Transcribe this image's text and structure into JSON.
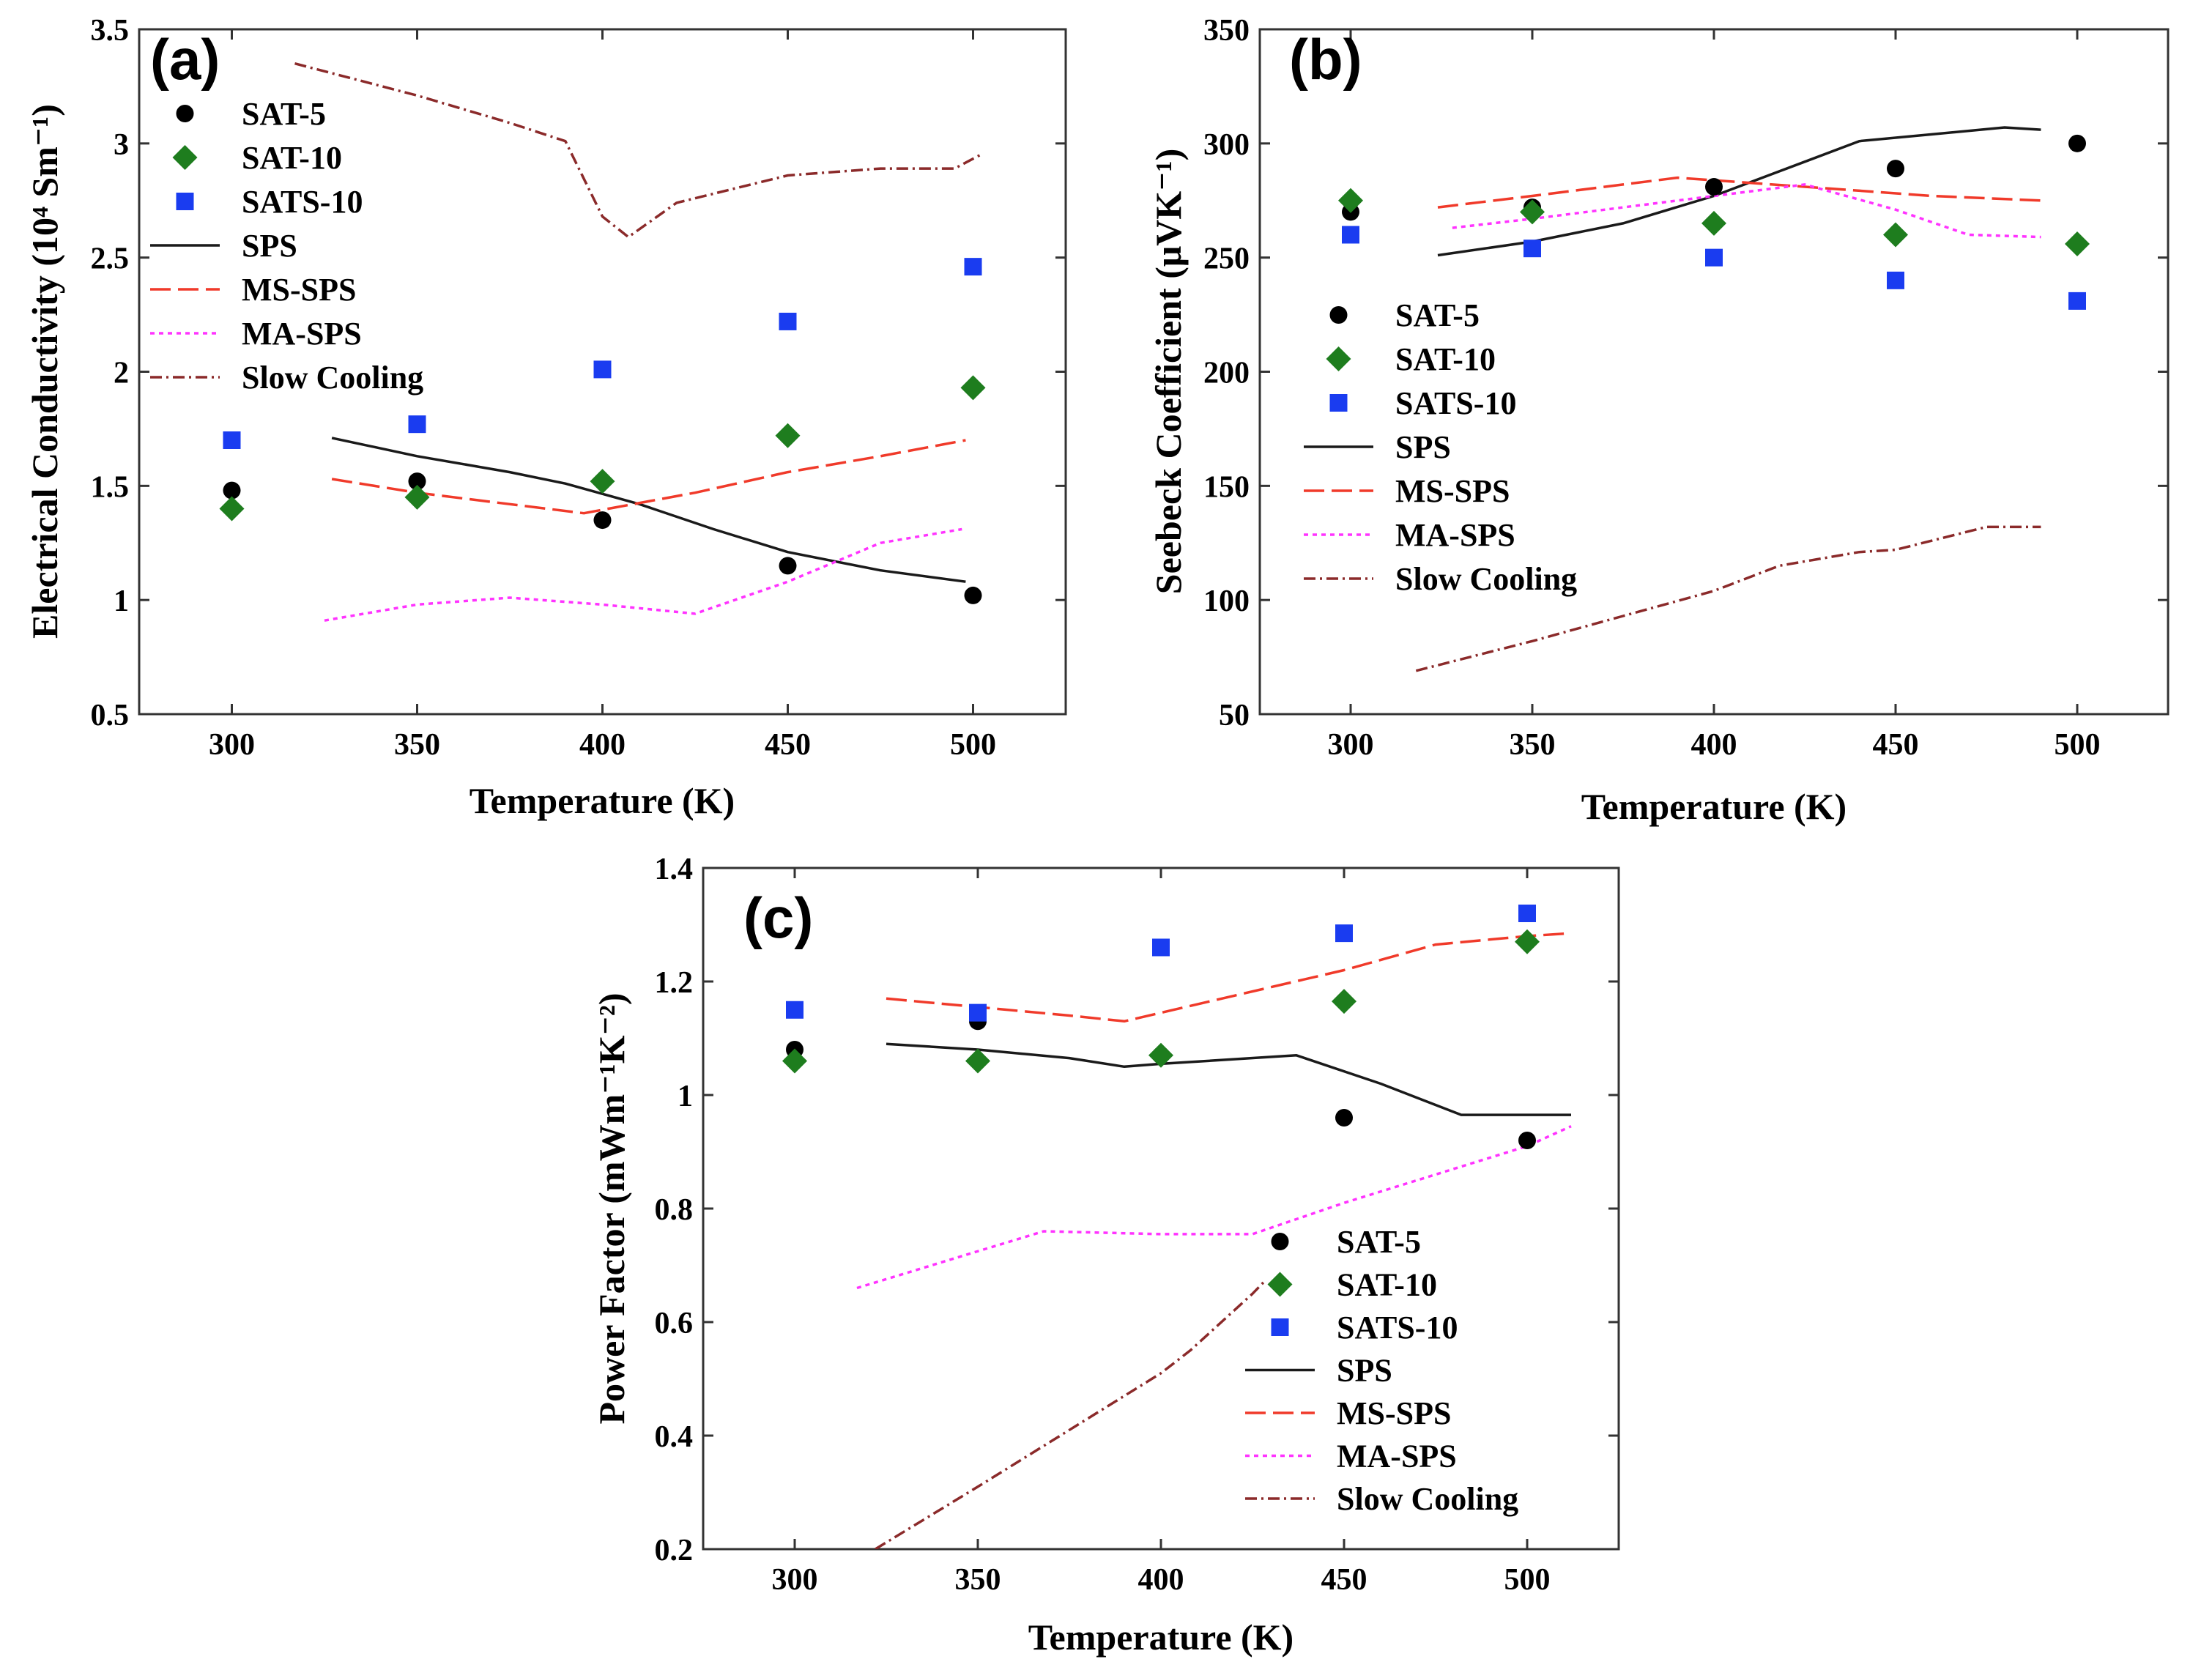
{
  "styles": {
    "SAT-5": {
      "marker": "circle",
      "color": "#000000"
    },
    "SAT-10": {
      "marker": "diamond",
      "color": "#1e7d1e"
    },
    "SATS-10": {
      "marker": "square",
      "color": "#1a3cf0"
    },
    "SPS": {
      "dash": "none",
      "color": "#1a1a1a"
    },
    "MS-SPS": {
      "dash": "28,10",
      "color": "#f03a2a"
    },
    "MA-SPS": {
      "dash": "6,6",
      "color": "#ff33ff"
    },
    "Slow Cooling": {
      "dash": "16,6,3,6",
      "color": "#8b2a2a"
    }
  },
  "legend_order": [
    "SAT-5",
    "SAT-10",
    "SATS-10",
    "SPS",
    "MS-SPS",
    "MA-SPS",
    "Slow Cooling"
  ],
  "chart_data": [
    {
      "id": "a",
      "panel_label": "(a)",
      "type": "scatter+line",
      "xlabel": "Temperature (K)",
      "ylabel": "Electrical Conductivity (10⁴ Sm⁻¹)",
      "xlim": [
        275,
        525
      ],
      "ylim": [
        0.5,
        3.5
      ],
      "xticks": [
        "300",
        "350",
        "400",
        "450",
        "500"
      ],
      "yticks": [
        "0.5",
        "1",
        "1.5",
        "2",
        "2.5",
        "3",
        "3.5"
      ],
      "legend_position": "top-left",
      "scatter": [
        {
          "name": "SAT-5",
          "x": [
            300,
            350,
            400,
            450,
            500
          ],
          "y": [
            1.48,
            1.52,
            1.35,
            1.15,
            1.02
          ]
        },
        {
          "name": "SAT-10",
          "x": [
            300,
            350,
            400,
            450,
            500
          ],
          "y": [
            1.4,
            1.45,
            1.52,
            1.72,
            1.93
          ]
        },
        {
          "name": "SATS-10",
          "x": [
            300,
            350,
            400,
            450,
            500
          ],
          "y": [
            1.7,
            1.77,
            2.01,
            2.22,
            2.46
          ]
        }
      ],
      "lines": [
        {
          "name": "SPS",
          "x": [
            327,
            350,
            375,
            390,
            410,
            430,
            450,
            475,
            498
          ],
          "y": [
            1.71,
            1.63,
            1.56,
            1.51,
            1.42,
            1.31,
            1.21,
            1.13,
            1.08
          ]
        },
        {
          "name": "MS-SPS",
          "x": [
            327,
            350,
            375,
            395,
            425,
            450,
            475,
            498
          ],
          "y": [
            1.53,
            1.47,
            1.42,
            1.38,
            1.47,
            1.56,
            1.63,
            1.7
          ]
        },
        {
          "name": "MA-SPS",
          "x": [
            325,
            350,
            375,
            400,
            425,
            450,
            475,
            497
          ],
          "y": [
            0.91,
            0.98,
            1.01,
            0.98,
            0.94,
            1.08,
            1.25,
            1.31
          ]
        },
        {
          "name": "Slow Cooling",
          "x": [
            317,
            350,
            375,
            390,
            400,
            407,
            420,
            450,
            475,
            495,
            502
          ],
          "y": [
            3.35,
            3.21,
            3.09,
            3.01,
            2.68,
            2.59,
            2.74,
            2.86,
            2.89,
            2.89,
            2.95
          ]
        }
      ]
    },
    {
      "id": "b",
      "panel_label": "(b)",
      "type": "scatter+line",
      "xlabel": "Temperature (K)",
      "ylabel": "Seebeck Coefficient (μVK⁻¹)",
      "xlim": [
        275,
        525
      ],
      "ylim": [
        50,
        350
      ],
      "xticks": [
        "300",
        "350",
        "400",
        "450",
        "500"
      ],
      "yticks": [
        "50",
        "100",
        "150",
        "200",
        "250",
        "300",
        "350"
      ],
      "legend_position": "left-center",
      "scatter": [
        {
          "name": "SAT-5",
          "x": [
            300,
            350,
            400,
            450,
            500
          ],
          "y": [
            270,
            272,
            281,
            289,
            300
          ]
        },
        {
          "name": "SAT-10",
          "x": [
            300,
            350,
            400,
            450,
            500
          ],
          "y": [
            275,
            270,
            265,
            260,
            256
          ]
        },
        {
          "name": "SATS-10",
          "x": [
            300,
            350,
            400,
            450,
            500
          ],
          "y": [
            260,
            254,
            250,
            240,
            231
          ]
        }
      ],
      "lines": [
        {
          "name": "SPS",
          "x": [
            324,
            350,
            375,
            400,
            425,
            440,
            460,
            480,
            490
          ],
          "y": [
            251,
            257,
            265,
            277,
            292,
            301,
            304,
            307,
            306
          ]
        },
        {
          "name": "MS-SPS",
          "x": [
            324,
            350,
            375,
            390,
            425,
            460,
            490
          ],
          "y": [
            272,
            277,
            282,
            285,
            281,
            277,
            275
          ]
        },
        {
          "name": "MA-SPS",
          "x": [
            328,
            350,
            375,
            400,
            425,
            450,
            470,
            490
          ],
          "y": [
            263,
            267,
            272,
            277,
            282,
            271,
            260,
            259
          ]
        },
        {
          "name": "Slow Cooling",
          "x": [
            318,
            350,
            375,
            400,
            418,
            440,
            450,
            475,
            490
          ],
          "y": [
            69,
            82,
            93,
            104,
            115,
            121,
            122,
            132,
            132
          ]
        }
      ]
    },
    {
      "id": "c",
      "panel_label": "(c)",
      "type": "scatter+line",
      "xlabel": "Temperature (K)",
      "ylabel": "Power Factor (mWm⁻¹K⁻²)",
      "xlim": [
        275,
        525
      ],
      "ylim": [
        0.2,
        1.4
      ],
      "xticks": [
        "300",
        "350",
        "400",
        "450",
        "500"
      ],
      "yticks": [
        "0.2",
        "0.4",
        "0.6",
        "0.8",
        "1",
        "1.2",
        "1.4"
      ],
      "legend_position": "bottom-right",
      "scatter": [
        {
          "name": "SAT-5",
          "x": [
            300,
            350,
            400,
            450,
            500
          ],
          "y": [
            1.08,
            1.13,
            1.07,
            0.96,
            0.92
          ]
        },
        {
          "name": "SAT-10",
          "x": [
            300,
            350,
            400,
            450,
            500
          ],
          "y": [
            1.06,
            1.06,
            1.07,
            1.165,
            1.27
          ]
        },
        {
          "name": "SATS-10",
          "x": [
            300,
            350,
            400,
            450,
            500
          ],
          "y": [
            1.15,
            1.145,
            1.26,
            1.285,
            1.32
          ]
        }
      ],
      "lines": [
        {
          "name": "SPS",
          "x": [
            325,
            350,
            375,
            390,
            400,
            437,
            460,
            482,
            512
          ],
          "y": [
            1.09,
            1.08,
            1.065,
            1.05,
            1.055,
            1.07,
            1.02,
            0.965,
            0.965
          ]
        },
        {
          "name": "MS-SPS",
          "x": [
            325,
            350,
            375,
            390,
            420,
            450,
            475,
            500,
            512
          ],
          "y": [
            1.17,
            1.155,
            1.14,
            1.13,
            1.175,
            1.22,
            1.265,
            1.28,
            1.285
          ]
        },
        {
          "name": "MA-SPS",
          "x": [
            317,
            345,
            368,
            400,
            425,
            450,
            475,
            500,
            512
          ],
          "y": [
            0.66,
            0.715,
            0.76,
            0.755,
            0.755,
            0.81,
            0.86,
            0.91,
            0.945
          ]
        },
        {
          "name": "Slow Cooling",
          "x": [
            322,
            350,
            375,
            400,
            408,
            425,
            428
          ],
          "y": [
            0.2,
            0.31,
            0.41,
            0.51,
            0.55,
            0.65,
            0.67
          ]
        }
      ]
    }
  ]
}
